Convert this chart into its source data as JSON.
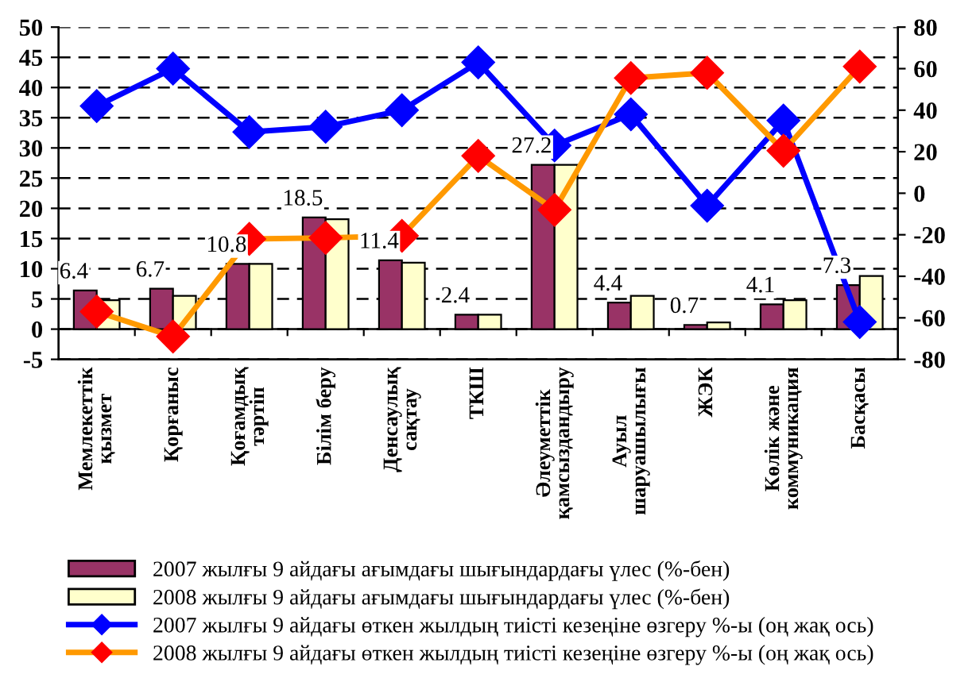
{
  "chart_data": {
    "type": "bar",
    "categories": [
      "Мемлекеттік\nқызмет",
      "Қорғаныс",
      "Қоғамдық\nтәртіп",
      "Білім беру",
      "Денсаулық\nсақтау",
      "ТКШ",
      "Әлеуметтік\nқамсыздандыру",
      "Ауыл\nшаруашылығы",
      "ЖЭК",
      "Көлік және\nкоммуникация",
      "Басқасы"
    ],
    "series": [
      {
        "name": "2007 жылғы 9 айдағы ағымдағы шығындардағы үлес (%-бен)",
        "color": "#993366",
        "values": [
          6.4,
          6.7,
          10.8,
          18.5,
          11.4,
          2.4,
          27.2,
          4.4,
          0.7,
          4.1,
          7.3
        ],
        "value_labels": [
          "6.4",
          "6.7",
          "10.8",
          "18.5",
          "11.4",
          "2.4",
          "27.2",
          "4.4",
          "0.7",
          "4.1",
          "7.3"
        ]
      },
      {
        "name": "2008 жылғы 9 айдағы ағымдағы шығындардағы үлес (%-бен)",
        "color": "#ffffcc",
        "values": [
          4.8,
          5.5,
          10.8,
          18.2,
          11.0,
          2.4,
          27.2,
          5.5,
          1.1,
          4.8,
          8.8
        ]
      },
      {
        "name": "2007 жылғы 9 айдағы өткен жылдың тиісті кезеңіне өзгеру %-ы (оң жақ ось)",
        "type": "line",
        "axis": "y2",
        "color": "#0000ff",
        "marker": "diamond",
        "values": [
          42,
          60,
          29.5,
          32,
          40,
          63,
          23,
          38,
          -6,
          35,
          -62
        ]
      },
      {
        "name": "2008 жылғы 9 айдағы өткен жылдың тиісті кезеңіне өзгеру %-ы (оң жақ ось)",
        "type": "line",
        "axis": "y2",
        "color": "#ff9900",
        "marker": "diamond",
        "values": [
          -57,
          -69,
          -22,
          -21.5,
          -20.5,
          18,
          -8,
          55.5,
          58,
          20.5,
          61
        ]
      }
    ],
    "ylim": [
      -5,
      50
    ],
    "yticks": [
      {
        "value": -5,
        "label": "-5"
      },
      0,
      5,
      10,
      15,
      20,
      25,
      30,
      35,
      40,
      45,
      50
    ],
    "y2lim": [
      -80,
      80
    ],
    "y2ticks": [
      {
        "value": -80,
        "label": "-80"
      },
      {
        "value": -60,
        "label": "-60"
      },
      {
        "value": -40,
        "label": "-40"
      },
      {
        "value": -20,
        "label": "-20"
      },
      0,
      20,
      40,
      60,
      80
    ],
    "grid": "y",
    "legend": "bottom"
  }
}
